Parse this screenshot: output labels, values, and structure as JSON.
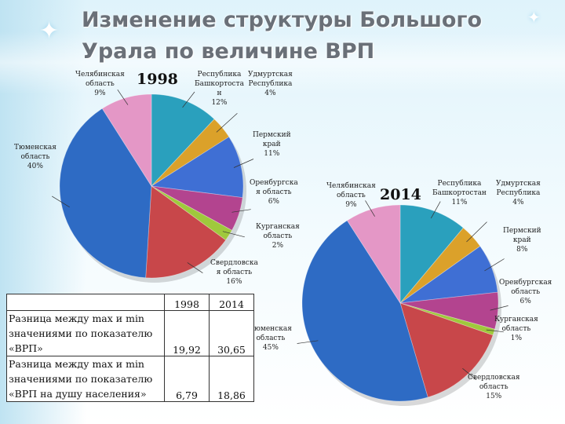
{
  "title": "Изменение структуры Большого Урала по величине ВРП",
  "colors": {
    "chelyabinsk": "#e497c6",
    "bashkortostan": "#2aa0bd",
    "udmurtia": "#dba12a",
    "perm": "#3f6fd4",
    "orenburg": "#b3448f",
    "kurgan": "#9fc93c",
    "sverdlovsk": "#c8474a",
    "tyumen": "#2e6bc4"
  },
  "chart_data": [
    {
      "type": "pie",
      "title": "1998",
      "slices": [
        {
          "key": "bashkortostan",
          "name": "Республика Башкортостан",
          "value": 12,
          "label_lines": [
            "Республика",
            "Башкортоста",
            "н",
            "12%"
          ]
        },
        {
          "key": "udmurtia",
          "name": "Удмуртская Республика",
          "value": 4,
          "label_lines": [
            "Удмуртская",
            "Республика",
            "4%"
          ]
        },
        {
          "key": "perm",
          "name": "Пермский край",
          "value": 11,
          "label_lines": [
            "Пермский",
            "край",
            "11%"
          ]
        },
        {
          "key": "orenburg",
          "name": "Оренбургская область",
          "value": 6,
          "label_lines": [
            "Оренбургска",
            "я область",
            "6%"
          ]
        },
        {
          "key": "kurgan",
          "name": "Курганская область",
          "value": 2,
          "label_lines": [
            "Курганская",
            "область",
            "2%"
          ]
        },
        {
          "key": "sverdlovsk",
          "name": "Свердловская область",
          "value": 16,
          "label_lines": [
            "Свердловска",
            "я область",
            "16%"
          ]
        },
        {
          "key": "tyumen",
          "name": "Тюменская область",
          "value": 40,
          "label_lines": [
            "Тюменская",
            "область",
            "40%"
          ]
        },
        {
          "key": "chelyabinsk",
          "name": "Челябинская область",
          "value": 9,
          "label_lines": [
            "Челябинская",
            "область",
            "9%"
          ]
        }
      ]
    },
    {
      "type": "pie",
      "title": "2014",
      "slices": [
        {
          "key": "bashkortostan",
          "name": "Республика Башкортостан",
          "value": 11,
          "label_lines": [
            "Республика",
            "Башкортостан",
            "11%"
          ]
        },
        {
          "key": "udmurtia",
          "name": "Удмуртская Республика",
          "value": 4,
          "label_lines": [
            "Удмуртская",
            "Республика",
            "4%"
          ]
        },
        {
          "key": "perm",
          "name": "Пермский край",
          "value": 8,
          "label_lines": [
            "Пермский",
            "край",
            "8%"
          ]
        },
        {
          "key": "orenburg",
          "name": "Оренбургская область",
          "value": 6,
          "label_lines": [
            "Оренбургская",
            "область",
            "6%"
          ]
        },
        {
          "key": "kurgan",
          "name": "Курганская область",
          "value": 1,
          "label_lines": [
            "Курганская",
            "область",
            "1%"
          ]
        },
        {
          "key": "sverdlovsk",
          "name": "Свердловская область",
          "value": 15,
          "label_lines": [
            "Свердловская",
            "область",
            "15%"
          ]
        },
        {
          "key": "tyumen",
          "name": "Тюменская область",
          "value": 45,
          "label_lines": [
            "Тюменская",
            "область",
            "45%"
          ]
        },
        {
          "key": "chelyabinsk",
          "name": "Челябинская область",
          "value": 9,
          "label_lines": [
            "Челябинская",
            "область",
            "9%"
          ]
        }
      ]
    }
  ],
  "table": {
    "columns": [
      "1998",
      "2014"
    ],
    "rows": [
      {
        "label": "Разница между max и min значениями по показателю «ВРП»",
        "label_lines": [
          "Разница между max и min",
          "значениями по показателю",
          "«ВРП»"
        ],
        "values": [
          "19,92",
          "30,65"
        ]
      },
      {
        "label": "Разница между max и min значениями по показателю «ВРП на душу населения»",
        "label_lines": [
          "Разница между max и min",
          "значениями по показателю",
          "«ВРП на душу населения»"
        ],
        "values": [
          "6,79",
          "18,86"
        ]
      }
    ]
  }
}
